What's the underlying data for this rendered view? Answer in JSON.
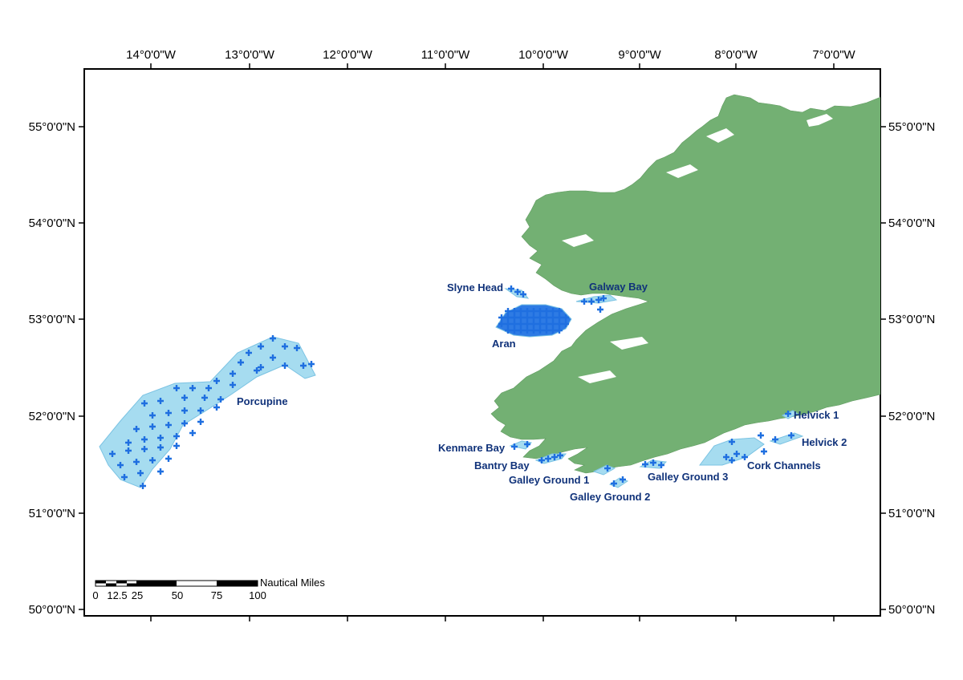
{
  "map": {
    "colors": {
      "land": "#73b073",
      "sea": "#ffffff",
      "area_fill": "#a6dcf0",
      "area_stroke": "#7bc3e3",
      "plus": "#1f6fe0",
      "label": "#10327a",
      "frame": "#000000"
    },
    "axes": {
      "top": [
        "14°0'0\"W",
        "13°0'0\"W",
        "12°0'0\"W",
        "11°0'0\"W",
        "10°0'0\"W",
        "9°0'0\"W",
        "8°0'0\"W",
        "7°0'0\"W"
      ],
      "left": [
        "55°0'0\"N",
        "54°0'0\"N",
        "53°0'0\"N",
        "52°0'0\"N",
        "51°0'0\"N",
        "50°0'0\"N"
      ],
      "right": [
        "55°0'0\"N",
        "54°0'0\"N",
        "53°0'0\"N",
        "52°0'0\"N",
        "51°0'0\"N",
        "50°0'0\"N"
      ]
    },
    "areas": {
      "porcupine": "Porcupine",
      "slyne_head": "Slyne Head",
      "galway_bay": "Galway Bay",
      "aran": "Aran",
      "kenmare_bay": "Kenmare Bay",
      "bantry_bay": "Bantry Bay",
      "galley_ground_1": "Galley Ground 1",
      "galley_ground_2": "Galley Ground 2",
      "galley_ground_3": "Galley Ground 3",
      "cork_channels": "Cork Channels",
      "helvick_1": "Helvick 1",
      "helvick_2": "Helvick 2"
    },
    "scale_bar": {
      "unit": "Nautical Miles",
      "ticks": [
        "0",
        "12.5",
        "25",
        "50",
        "75",
        "100"
      ]
    }
  }
}
